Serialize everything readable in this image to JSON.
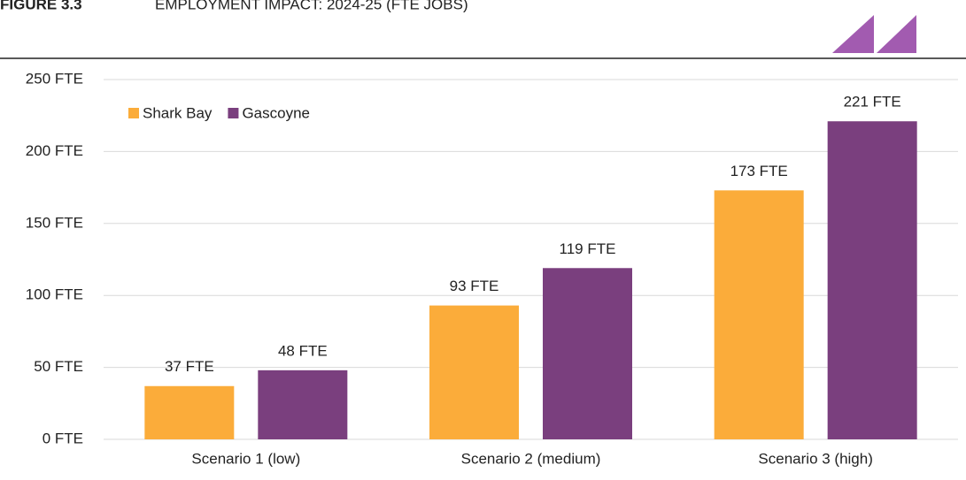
{
  "chart_data": {
    "type": "bar",
    "figure_label": "FIGURE 3.3",
    "title": "EMPLOYMENT IMPACT: 2024-25 (FTE JOBS)",
    "categories": [
      "Scenario 1 (low)",
      "Scenario 2 (medium)",
      "Scenario 3 (high)"
    ],
    "series": [
      {
        "name": "Shark Bay",
        "color": "#fbac3a",
        "values": [
          37,
          93,
          173
        ],
        "value_labels": [
          "37 FTE",
          "93 FTE",
          "173 FTE"
        ]
      },
      {
        "name": "Gascoyne",
        "color": "#7a3f7e",
        "values": [
          48,
          119,
          221
        ],
        "value_labels": [
          "48 FTE",
          "119 FTE",
          "221 FTE"
        ]
      }
    ],
    "ylim": [
      0,
      250
    ],
    "yticks": [
      {
        "value": 0,
        "label": "0 FTE"
      },
      {
        "value": 50,
        "label": "50 FTE"
      },
      {
        "value": 100,
        "label": "100 FTE"
      },
      {
        "value": 150,
        "label": "150 FTE"
      },
      {
        "value": 200,
        "label": "200 FTE"
      },
      {
        "value": 250,
        "label": "250 FTE"
      }
    ],
    "grid": true,
    "legend": "top-left"
  }
}
